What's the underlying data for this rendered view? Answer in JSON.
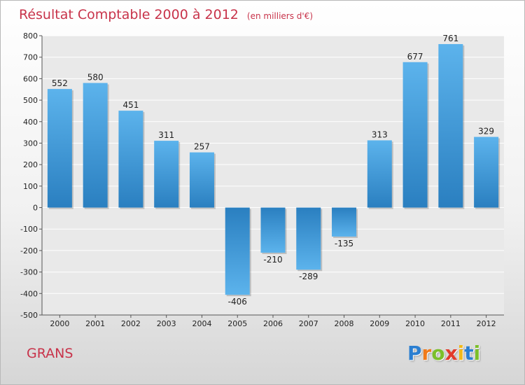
{
  "header": {
    "title": "Résultat Comptable 2000 à 2012",
    "subtitle": "(en milliers d'€)"
  },
  "footer": {
    "commune": "GRANS",
    "logo": [
      "P",
      "r",
      "o",
      "x",
      "i",
      "t",
      "i"
    ]
  },
  "colors": {
    "title": "#c8334a",
    "bar_light": "#5cb3ec",
    "bar_dark": "#2a7fc0",
    "logo": [
      "#2b7fd1",
      "#f07a1a",
      "#7bbf2a",
      "#e23b2b",
      "#f2b91a",
      "#2b7fd1",
      "#7bbf2a"
    ]
  },
  "chart_data": {
    "type": "bar",
    "title": "Résultat Comptable 2000 à 2012",
    "subtitle": "(en milliers d'€)",
    "xlabel": "",
    "ylabel": "",
    "categories": [
      "2000",
      "2001",
      "2002",
      "2003",
      "2004",
      "2005",
      "2006",
      "2007",
      "2008",
      "2009",
      "2010",
      "2011",
      "2012"
    ],
    "values": [
      552,
      580,
      451,
      311,
      257,
      -406,
      -210,
      -289,
      -135,
      313,
      677,
      761,
      329
    ],
    "ylim": [
      -500,
      800
    ],
    "yticks": [
      800,
      700,
      600,
      500,
      400,
      300,
      200,
      100,
      0,
      -100,
      -200,
      -300,
      -400,
      -500
    ],
    "grid": true
  }
}
